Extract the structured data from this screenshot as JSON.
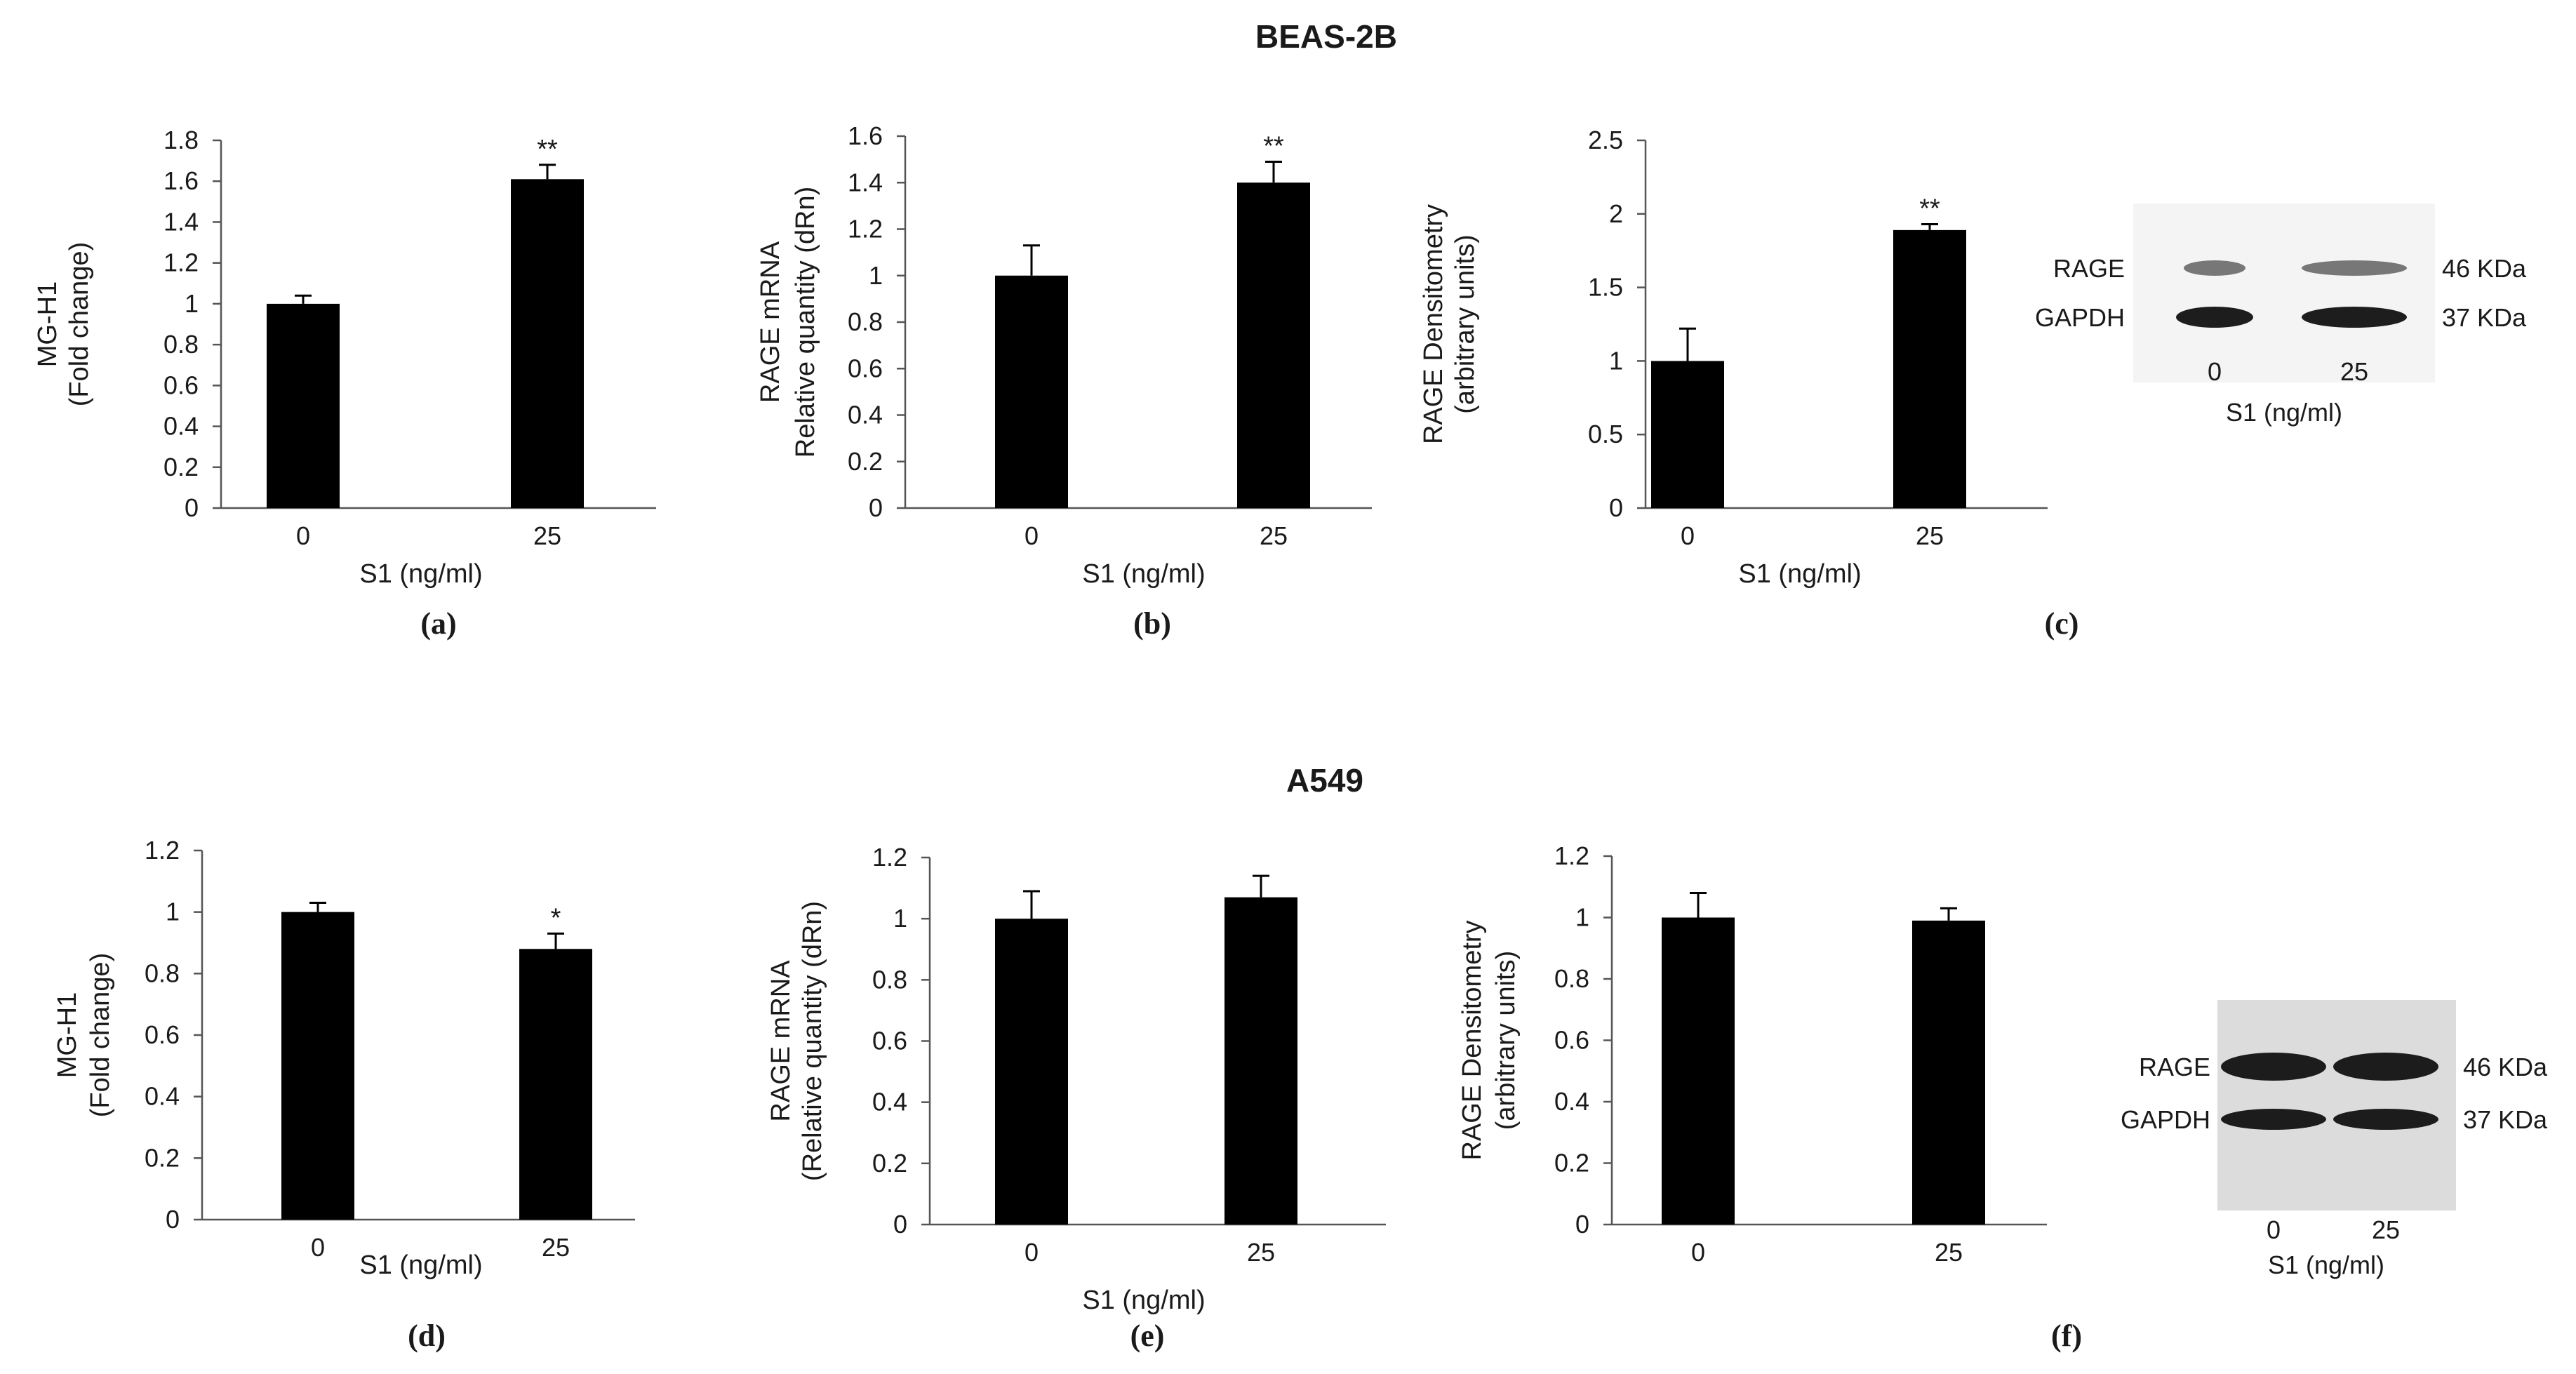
{
  "sections": [
    {
      "title": "BEAS-2B"
    },
    {
      "title": "A549"
    }
  ],
  "chart_data": [
    {
      "id": "a",
      "section": "BEAS-2B",
      "type": "bar",
      "panel_label": "(a)",
      "categories": [
        "0",
        "25"
      ],
      "values": [
        1.0,
        1.61
      ],
      "errors": [
        0.04,
        0.07
      ],
      "significance": [
        "",
        "**"
      ],
      "ylabel": [
        "MG-H1",
        "(Fold change)"
      ],
      "xlabel": "S1 (ng/ml)",
      "ylim": [
        0,
        1.8
      ],
      "yticks": [
        0,
        0.2,
        0.4,
        0.6,
        0.8,
        1,
        1.2,
        1.4,
        1.6,
        1.8
      ],
      "ytick_labels": [
        "0",
        "0.2",
        "0.4",
        "0.6",
        "0.8",
        "1",
        "1.2",
        "1.4",
        "1.6",
        "1.8"
      ]
    },
    {
      "id": "b",
      "section": "BEAS-2B",
      "type": "bar",
      "panel_label": "(b)",
      "categories": [
        "0",
        "25"
      ],
      "values": [
        1.0,
        1.4
      ],
      "errors": [
        0.13,
        0.09
      ],
      "significance": [
        "",
        "**"
      ],
      "ylabel": [
        "RAGE mRNA",
        "Relative quantity (dRn)"
      ],
      "xlabel": "S1 (ng/ml)",
      "ylim": [
        0,
        1.6
      ],
      "yticks": [
        0,
        0.2,
        0.4,
        0.6,
        0.8,
        1,
        1.2,
        1.4,
        1.6
      ],
      "ytick_labels": [
        "0",
        "0.2",
        "0.4",
        "0.6",
        "0.8",
        "1",
        "1.2",
        "1.4",
        "1.6"
      ]
    },
    {
      "id": "c",
      "section": "BEAS-2B",
      "type": "bar",
      "panel_label": "(c)",
      "categories": [
        "0",
        "25"
      ],
      "values": [
        1.0,
        1.89
      ],
      "errors": [
        0.22,
        0.04
      ],
      "significance": [
        "",
        "**"
      ],
      "ylabel": [
        "RAGE Densitometry",
        "(arbitrary units)"
      ],
      "xlabel": "S1 (ng/ml)",
      "ylim": [
        0,
        2.5
      ],
      "yticks": [
        0,
        0.5,
        1,
        1.5,
        2,
        2.5
      ],
      "ytick_labels": [
        "0",
        "0.5",
        "1",
        "1.5",
        "2",
        "2.5"
      ]
    },
    {
      "id": "d",
      "section": "A549",
      "type": "bar",
      "panel_label": "(d)",
      "categories": [
        "0",
        "25"
      ],
      "values": [
        1.0,
        0.88
      ],
      "errors": [
        0.03,
        0.05
      ],
      "significance": [
        "",
        "*"
      ],
      "ylabel": [
        "MG-H1",
        "(Fold change)"
      ],
      "xlabel": "S1 (ng/ml)",
      "ylim": [
        0,
        1.2
      ],
      "yticks": [
        0,
        0.2,
        0.4,
        0.6,
        0.8,
        1,
        1.2
      ],
      "ytick_labels": [
        "0",
        "0.2",
        "0.4",
        "0.6",
        "0.8",
        "1",
        "1.2"
      ]
    },
    {
      "id": "e",
      "section": "A549",
      "type": "bar",
      "panel_label": "(e)",
      "categories": [
        "0",
        "25"
      ],
      "values": [
        1.0,
        1.07
      ],
      "errors": [
        0.09,
        0.07
      ],
      "significance": [
        "",
        ""
      ],
      "ylabel": [
        "RAGE mRNA",
        "(Relative quantity (dRn)"
      ],
      "xlabel": "S1 (ng/ml)",
      "ylim": [
        0,
        1.2
      ],
      "yticks": [
        0,
        0.2,
        0.4,
        0.6,
        0.8,
        1,
        1.2
      ],
      "ytick_labels": [
        "0",
        "0.2",
        "0.4",
        "0.6",
        "0.8",
        "1",
        "1.2"
      ]
    },
    {
      "id": "f",
      "section": "A549",
      "type": "bar",
      "panel_label": "(f)",
      "categories": [
        "0",
        "25"
      ],
      "values": [
        1.0,
        0.99
      ],
      "errors": [
        0.08,
        0.04
      ],
      "significance": [
        "",
        ""
      ],
      "ylabel": [
        "RAGE Densitometry",
        "(arbitrary units)"
      ],
      "xlabel": "",
      "ylim": [
        0,
        1.2
      ],
      "yticks": [
        0,
        0.2,
        0.4,
        0.6,
        0.8,
        1,
        1.2
      ],
      "ytick_labels": [
        "0",
        "0.2",
        "0.4",
        "0.6",
        "0.8",
        "1",
        "1.2"
      ]
    }
  ],
  "blots": [
    {
      "id": "blot-top",
      "section": "BEAS-2B",
      "bands": [
        {
          "protein": "RAGE",
          "size": "46 KDa"
        },
        {
          "protein": "GAPDH",
          "size": "37 KDa"
        }
      ],
      "lanes": [
        "0",
        "25"
      ],
      "xlabel": "S1 (ng/ml)"
    },
    {
      "id": "blot-bottom",
      "section": "A549",
      "bands": [
        {
          "protein": "RAGE",
          "size": "46 KDa"
        },
        {
          "protein": "GAPDH",
          "size": "37 KDa"
        }
      ],
      "lanes": [
        "0",
        "25"
      ],
      "xlabel": "S1 (ng/ml)"
    }
  ]
}
